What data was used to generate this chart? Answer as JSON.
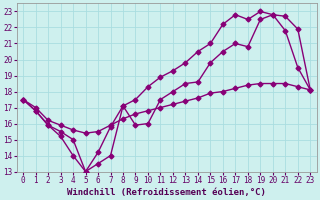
{
  "xlabel": "Windchill (Refroidissement éolien,°C)",
  "xlim": [
    -0.5,
    23.5
  ],
  "ylim": [
    13,
    23.5
  ],
  "xticks": [
    0,
    1,
    2,
    3,
    4,
    5,
    6,
    7,
    8,
    9,
    10,
    11,
    12,
    13,
    14,
    15,
    16,
    17,
    18,
    19,
    20,
    21,
    22,
    23
  ],
  "yticks": [
    13,
    14,
    15,
    16,
    17,
    18,
    19,
    20,
    21,
    22,
    23
  ],
  "background_color": "#cef0ee",
  "grid_color": "#aadde0",
  "line_color": "#880077",
  "line1_x": [
    0,
    1,
    2,
    3,
    4,
    5,
    6,
    7,
    8,
    9,
    10,
    11,
    12,
    13,
    14,
    15,
    16,
    17,
    18,
    19,
    20,
    21,
    22,
    23
  ],
  "line1_y": [
    17.5,
    16.8,
    15.9,
    15.2,
    14.0,
    13.0,
    13.5,
    14.0,
    17.1,
    15.9,
    16.0,
    17.5,
    18.0,
    18.5,
    18.6,
    19.8,
    20.5,
    21.0,
    20.8,
    22.5,
    22.8,
    22.7,
    21.9,
    18.1
  ],
  "line2_x": [
    0,
    1,
    2,
    3,
    4,
    5,
    6,
    7,
    8,
    9,
    10,
    11,
    12,
    13,
    14,
    15,
    16,
    17,
    18,
    19,
    20,
    21,
    22,
    23
  ],
  "line2_y": [
    17.5,
    16.8,
    15.9,
    15.5,
    15.0,
    13.0,
    14.2,
    15.8,
    17.1,
    17.5,
    18.3,
    18.9,
    19.3,
    19.8,
    20.5,
    21.0,
    22.2,
    22.8,
    22.5,
    23.0,
    22.8,
    21.8,
    19.5,
    18.1
  ],
  "line3_x": [
    0,
    1,
    2,
    3,
    4,
    5,
    6,
    7,
    8,
    9,
    10,
    11,
    12,
    13,
    14,
    15,
    16,
    17,
    18,
    19,
    20,
    21,
    22,
    23
  ],
  "line3_y": [
    17.5,
    17.0,
    16.2,
    15.9,
    15.6,
    15.4,
    15.5,
    15.9,
    16.3,
    16.6,
    16.8,
    17.0,
    17.2,
    17.4,
    17.6,
    17.9,
    18.0,
    18.2,
    18.4,
    18.5,
    18.5,
    18.5,
    18.3,
    18.1
  ],
  "marker": "D",
  "markersize": 2.5,
  "linewidth": 1.0,
  "tick_fontsize": 5.5,
  "label_fontsize": 6.5
}
